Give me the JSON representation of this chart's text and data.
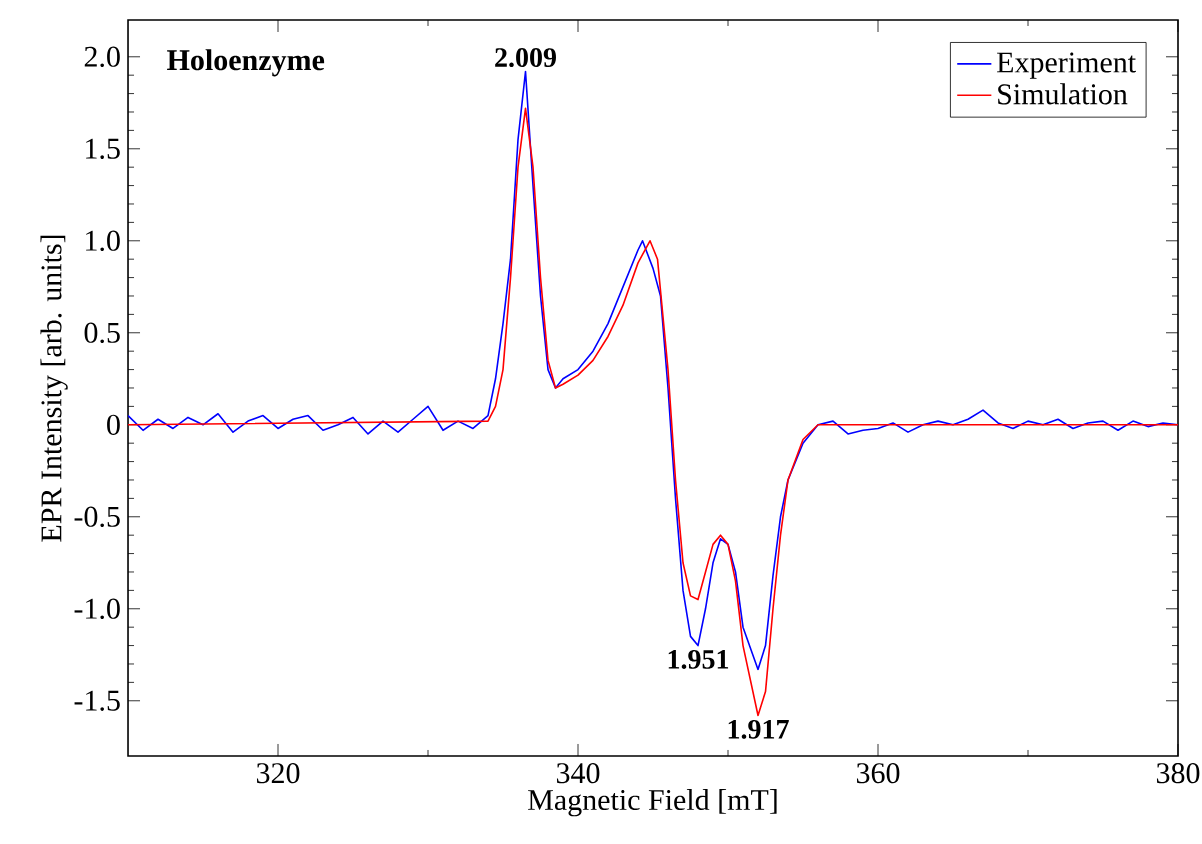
{
  "chart_data": {
    "type": "line",
    "title": "Holoenzyme",
    "xlabel": "Magnetic Field [mT]",
    "ylabel": "EPR Intensity [arb. units]",
    "xlim": [
      310,
      380
    ],
    "ylim": [
      -1.8,
      2.2
    ],
    "xticks": [
      320,
      340,
      360,
      380
    ],
    "yticks": [
      {
        "value": -1.5,
        "label": "-1.5"
      },
      {
        "value": -1.0,
        "label": "-1.0"
      },
      {
        "value": -0.5,
        "label": "-0.5"
      },
      0,
      {
        "value": 0.5,
        "label": "0.5"
      },
      {
        "value": 1.0,
        "label": "1.0"
      },
      {
        "value": 1.5,
        "label": "1.5"
      },
      {
        "value": 2.0,
        "label": "2.0"
      }
    ],
    "legend": "top right",
    "grid": false,
    "marker": "none",
    "line_style": "solid",
    "annotations": [
      {
        "text": "2.009",
        "x": 336.5,
        "y": 1.92
      },
      {
        "text": "1.951",
        "x": 348,
        "y": -1.2
      },
      {
        "text": "1.917",
        "x": 352,
        "y": -1.58
      }
    ],
    "series": [
      {
        "name": "Experiment",
        "color": "#0000ff",
        "x": [
          310,
          311,
          312,
          313,
          314,
          315,
          316,
          317,
          318,
          319,
          320,
          321,
          322,
          323,
          324,
          325,
          326,
          327,
          328,
          329,
          330,
          331,
          332,
          333,
          334,
          334.5,
          335,
          335.5,
          336,
          336.5,
          337,
          337.5,
          338,
          338.5,
          339,
          340,
          341,
          342,
          343,
          344,
          344.3,
          345,
          345.5,
          346,
          346.5,
          347,
          347.5,
          348,
          348.5,
          349,
          349.5,
          350,
          350.5,
          351,
          352,
          352.5,
          353,
          353.5,
          354,
          355,
          356,
          357,
          358,
          359,
          360,
          361,
          362,
          363,
          364,
          365,
          366,
          367,
          368,
          369,
          370,
          371,
          372,
          373,
          374,
          375,
          376,
          377,
          378,
          379,
          380
        ],
        "values": [
          0.05,
          -0.03,
          0.03,
          -0.02,
          0.04,
          0.0,
          0.06,
          -0.04,
          0.02,
          0.05,
          -0.02,
          0.03,
          0.05,
          -0.03,
          0.0,
          0.04,
          -0.05,
          0.02,
          -0.04,
          0.03,
          0.1,
          -0.03,
          0.02,
          -0.02,
          0.05,
          0.25,
          0.55,
          0.9,
          1.55,
          1.92,
          1.3,
          0.7,
          0.3,
          0.2,
          0.25,
          0.3,
          0.4,
          0.55,
          0.75,
          0.95,
          1.0,
          0.85,
          0.7,
          0.2,
          -0.4,
          -0.9,
          -1.15,
          -1.2,
          -1.0,
          -0.75,
          -0.62,
          -0.65,
          -0.8,
          -1.1,
          -1.33,
          -1.2,
          -0.82,
          -0.5,
          -0.3,
          -0.1,
          0.0,
          0.02,
          -0.05,
          -0.03,
          -0.02,
          0.01,
          -0.04,
          0.0,
          0.02,
          0.0,
          0.03,
          0.08,
          0.01,
          -0.02,
          0.02,
          0.0,
          0.03,
          -0.02,
          0.01,
          0.02,
          -0.03,
          0.02,
          -0.01,
          0.01,
          0.0
        ]
      },
      {
        "name": "Simulation",
        "color": "#ff0000",
        "x": [
          310,
          334,
          334.5,
          335,
          335.5,
          336,
          336.5,
          337,
          337.5,
          338,
          338.5,
          339,
          340,
          341,
          342,
          343,
          344,
          344.8,
          345.3,
          346,
          346.5,
          347,
          347.5,
          348,
          348.5,
          349,
          349.5,
          350,
          350.5,
          351,
          352,
          352.5,
          353,
          353.5,
          354,
          355,
          356,
          380
        ],
        "values": [
          0.0,
          0.02,
          0.1,
          0.3,
          0.8,
          1.4,
          1.72,
          1.4,
          0.8,
          0.35,
          0.2,
          0.22,
          0.27,
          0.35,
          0.48,
          0.65,
          0.88,
          1.0,
          0.9,
          0.3,
          -0.3,
          -0.75,
          -0.93,
          -0.95,
          -0.8,
          -0.65,
          -0.6,
          -0.65,
          -0.85,
          -1.2,
          -1.58,
          -1.45,
          -1.0,
          -0.6,
          -0.3,
          -0.08,
          0.0,
          0.0
        ]
      }
    ]
  }
}
